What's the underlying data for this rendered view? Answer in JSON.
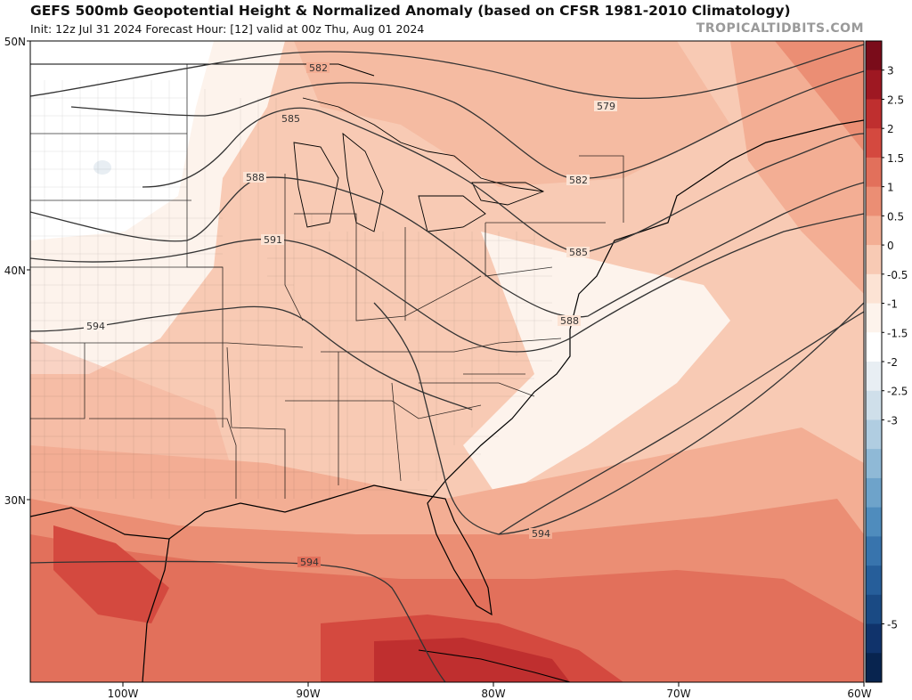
{
  "header": {
    "title": "GEFS 500mb Geopotential Height & Normalized Anomaly (based on CFSR 1981-2010 Climatology)",
    "subtitle": "Init: 12z Jul 31 2024   Forecast Hour: [12]   valid at 00z Thu, Aug 01 2024",
    "brand": "TROPICALTIDBITS.COM"
  },
  "map": {
    "lat_labels": [
      "50N",
      "40N",
      "30N"
    ],
    "lon_labels": [
      "100W",
      "90W",
      "80W",
      "70W",
      "60W"
    ],
    "contour_labels": [
      "582",
      "579",
      "585",
      "588",
      "591",
      "582",
      "585",
      "594",
      "588",
      "594",
      "594"
    ]
  },
  "colorbar": {
    "tick_labels": [
      "3",
      "2.5",
      "2",
      "1.5",
      "1",
      "0.5",
      "0",
      "-0.5",
      "-1",
      "-1.5",
      "-2",
      "-2.5",
      "-3",
      "-5"
    ],
    "colors": [
      "#7a0c1a",
      "#9e1822",
      "#bf2f2f",
      "#d4493f",
      "#e2705b",
      "#eb8e74",
      "#f3ae94",
      "#f8cab4",
      "#fce3d4",
      "#fdf3ec",
      "#ffffff",
      "#e8eef3",
      "#cfdfea",
      "#b0cde1",
      "#8fb9d6",
      "#6ea3ca",
      "#4f8cbd",
      "#3874ad",
      "#265e9a",
      "#1a4a84",
      "#10336b",
      "#08244f"
    ]
  }
}
